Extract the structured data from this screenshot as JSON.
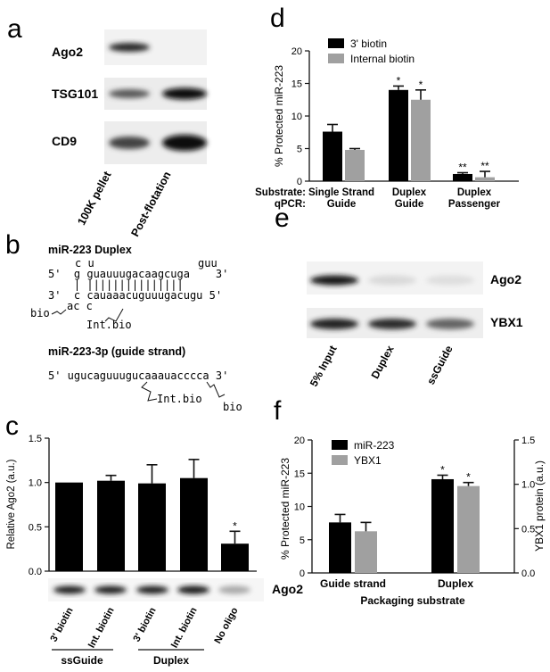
{
  "panel_a": {
    "letter": "a",
    "blots": [
      {
        "label": "Ago2",
        "band1": 0.85,
        "band2": 0.0
      },
      {
        "label": "TSG101",
        "band1": 0.65,
        "band2": 1.0
      },
      {
        "label": "CD9",
        "band1": 0.75,
        "band2": 1.0
      }
    ],
    "lanes": [
      "100K pellet",
      "Post-flotation"
    ]
  },
  "panel_b": {
    "letter": "b",
    "duplex_title": "miR-223 Duplex",
    "row_top_bulge": "c u",
    "row_top_bulge2": "guu",
    "row_top": "5'  g guauuugacaagcuga    3'",
    "row_bars": "    | |||||||||||||||",
    "row_bottom": "3'  c cauaaacuguuugacugu 5'",
    "row_bottom_bulge": "ac c",
    "bio_left": "bio",
    "int_bio_1": "Int.bio",
    "guide_title": "miR-223-3p (guide strand)",
    "guide_seq": "5' ugucaguuugucaaauacccca 3'",
    "int_bio_2": "Int.bio",
    "bio_right": "bio"
  },
  "panel_c": {
    "letter": "c",
    "blot_label": "Ago2",
    "lane_labels": [
      "3' biotin",
      "Int. biotin",
      "3' biotin",
      "Int. biotin",
      "No oligo"
    ],
    "group_labels": [
      "ssGuide",
      "Duplex"
    ],
    "band_intensity": [
      0.9,
      0.9,
      0.9,
      0.95,
      0.3
    ]
  },
  "panel_d": {
    "letter": "d",
    "substrate_label": "Substrate:",
    "qpcr_label": "qPCR:",
    "cat_line1": [
      "Single Strand",
      "Duplex",
      "Duplex"
    ],
    "cat_line2": [
      "Guide",
      "Guide",
      "Passenger"
    ]
  },
  "panel_e": {
    "letter": "e",
    "blots": [
      {
        "label": "Ago2",
        "bands": [
          0.95,
          0.08,
          0.06
        ]
      },
      {
        "label": "YBX1",
        "bands": [
          0.9,
          0.85,
          0.6
        ]
      }
    ],
    "lanes": [
      "5% Input",
      "Duplex",
      "ssGuide"
    ]
  },
  "panel_f": {
    "letter": "f"
  },
  "chart_data": [
    {
      "id": "c",
      "type": "bar",
      "categories": [
        "3' biotin",
        "Int. biotin",
        "3' biotin",
        "Int. biotin",
        "No oligo"
      ],
      "values": [
        1.0,
        1.02,
        0.99,
        1.05,
        0.31
      ],
      "errors": [
        0.0,
        0.06,
        0.21,
        0.21,
        0.14
      ],
      "significance": [
        "",
        "",
        "",
        "",
        "*"
      ],
      "ylabel": "Relative Ago2 (a.u.)",
      "ylim": [
        0,
        1.5
      ],
      "yticks": [
        "0.0",
        "0.5",
        "1.0",
        "1.5"
      ],
      "colors": [
        "#000000"
      ]
    },
    {
      "id": "d",
      "type": "bar",
      "categories": [
        "Single Strand Guide",
        "Duplex Guide",
        "Duplex Passenger"
      ],
      "series": [
        {
          "name": "3' biotin",
          "values": [
            7.6,
            14.0,
            1.1
          ],
          "errors": [
            1.1,
            0.6,
            0.2
          ],
          "significance": [
            "",
            "*",
            "**"
          ],
          "color": "#000000"
        },
        {
          "name": "Internal biotin",
          "values": [
            4.8,
            12.5,
            0.6
          ],
          "errors": [
            0.2,
            1.5,
            0.9
          ],
          "significance": [
            "",
            "*",
            "**"
          ],
          "color": "#a0a0a0"
        }
      ],
      "ylabel": "% Protected miR-223",
      "ylim": [
        0,
        20
      ],
      "yticks": [
        "0",
        "5",
        "10",
        "15",
        "20"
      ],
      "legend": "top-left"
    },
    {
      "id": "f",
      "type": "bar",
      "categories": [
        "Guide strand",
        "Duplex"
      ],
      "series": [
        {
          "name": "miR-223",
          "values": [
            7.6,
            14.1
          ],
          "errors": [
            1.2,
            0.6
          ],
          "significance": [
            "",
            "*"
          ],
          "axis": "left",
          "color": "#000000"
        },
        {
          "name": "YBX1",
          "values": [
            0.47,
            0.98
          ],
          "errors": [
            0.1,
            0.04
          ],
          "significance": [
            "",
            "*"
          ],
          "axis": "right",
          "color": "#a0a0a0"
        }
      ],
      "xlabel": "Packaging substrate",
      "ylabel": "% Protected miR-223",
      "ylabel_right": "YBX1 protein (a.u.)",
      "ylim": [
        0,
        20
      ],
      "ylim_right": [
        0,
        1.5
      ],
      "yticks": [
        "0",
        "5",
        "10",
        "15",
        "20"
      ],
      "yticks_right": [
        "0.0",
        "0.5",
        "1.0",
        "1.5"
      ],
      "legend": "top-left"
    }
  ]
}
